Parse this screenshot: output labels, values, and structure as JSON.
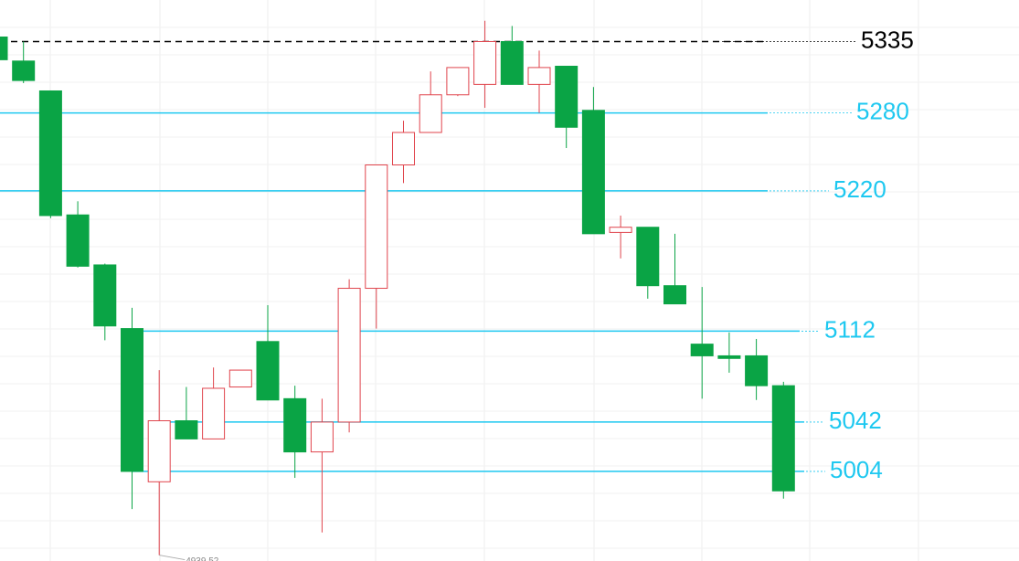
{
  "chart_data": {
    "type": "candlestick",
    "categories": [
      null,
      null,
      null,
      null,
      null,
      null,
      null,
      null,
      null,
      null,
      null,
      null,
      null,
      null,
      null,
      null,
      null,
      null,
      null,
      null,
      null,
      null,
      null,
      null,
      null,
      null,
      null,
      null,
      null,
      null
    ],
    "open": [
      5338.5,
      5320,
      5297,
      5201.5,
      5163,
      5114,
      4996,
      5043,
      5029,
      5069,
      5104,
      5060,
      5019,
      5042,
      5145,
      5240,
      5265,
      5294,
      5302,
      5335,
      5302,
      5316,
      5282,
      5188,
      5192,
      5147,
      5102,
      5093,
      5093,
      5070
    ],
    "high": [
      5338.5,
      5335,
      5297,
      5212,
      5164,
      5130,
      5082,
      5069,
      5084,
      5082,
      5132,
      5070,
      5060,
      5152,
      5240,
      5274,
      5312,
      5315,
      5351,
      5347,
      5328,
      5316,
      5300,
      5201,
      5192,
      5187,
      5146,
      5111,
      5106,
      5073
    ],
    "low": [
      5321,
      5303,
      5199,
      5161,
      5105,
      4975,
      4939.52,
      5029,
      5029,
      5069,
      5059,
      4999,
      4957,
      5034,
      5114,
      5226,
      5265,
      5293,
      5284,
      5302,
      5280,
      5253,
      5187,
      5168,
      5137,
      5133,
      5060,
      5080,
      5059,
      4983
    ],
    "close": [
      5321,
      5305,
      5201,
      5162,
      5116,
      5004,
      5043,
      5029,
      5068,
      5082,
      5059,
      5019,
      5042,
      5145,
      5240,
      5265,
      5294,
      5315,
      5335,
      5302,
      5315,
      5269,
      5187,
      5192,
      5147,
      5133,
      5093,
      5091,
      5070,
      4989
    ],
    "up_color": "#e0444c",
    "down_color": "#0aa445",
    "ylim": [
      4935,
      5367
    ],
    "levels": [
      {
        "value": 5335,
        "color": "#000000",
        "style": "dashed"
      },
      {
        "value": 5280,
        "color": "#1ec8f0",
        "style": "solid"
      },
      {
        "value": 5220,
        "color": "#1ec8f0",
        "style": "solid"
      },
      {
        "value": 5112,
        "color": "#1ec8f0",
        "style": "solid"
      },
      {
        "value": 5042,
        "color": "#1ec8f0",
        "style": "solid"
      },
      {
        "value": 5004,
        "color": "#1ec8f0",
        "style": "solid"
      }
    ]
  }
}
